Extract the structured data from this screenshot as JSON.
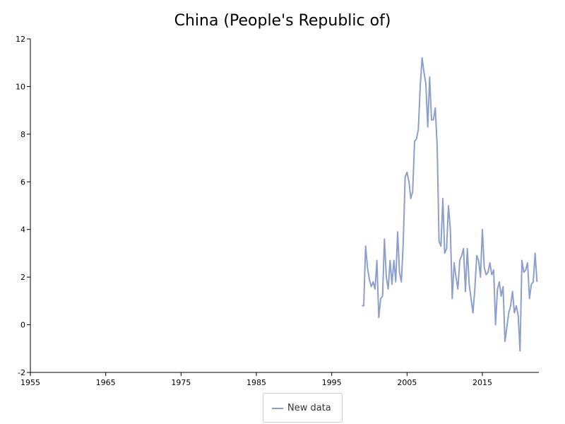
{
  "chart_data": {
    "type": "line",
    "title": "China (People's Republic of)",
    "xlabel": "",
    "ylabel": "",
    "xlim": [
      1955,
      2022.5
    ],
    "ylim": [
      -2,
      12
    ],
    "x_ticks": [
      1955,
      1965,
      1975,
      1985,
      1995,
      2005,
      2015
    ],
    "y_ticks": [
      -2,
      0,
      2,
      4,
      6,
      8,
      10,
      12
    ],
    "grid": false,
    "legend_position": "bottom-center",
    "series": [
      {
        "name": "New data",
        "color": "#8da0cb",
        "x": [
          1999.0,
          1999.25,
          1999.5,
          1999.75,
          2000.0,
          2000.25,
          2000.5,
          2000.75,
          2001.0,
          2001.25,
          2001.5,
          2001.75,
          2002.0,
          2002.25,
          2002.5,
          2002.75,
          2003.0,
          2003.25,
          2003.5,
          2003.75,
          2004.0,
          2004.25,
          2004.5,
          2004.75,
          2005.0,
          2005.25,
          2005.5,
          2005.75,
          2006.0,
          2006.25,
          2006.5,
          2006.75,
          2007.0,
          2007.25,
          2007.5,
          2007.75,
          2008.0,
          2008.25,
          2008.5,
          2008.75,
          2009.0,
          2009.25,
          2009.5,
          2009.75,
          2010.0,
          2010.25,
          2010.5,
          2010.75,
          2011.0,
          2011.25,
          2011.5,
          2011.75,
          2012.0,
          2012.25,
          2012.5,
          2012.75,
          2013.0,
          2013.25,
          2013.5,
          2013.75,
          2014.0,
          2014.25,
          2014.5,
          2014.75,
          2015.0,
          2015.25,
          2015.5,
          2015.75,
          2016.0,
          2016.25,
          2016.5,
          2016.75,
          2017.0,
          2017.25,
          2017.5,
          2017.75,
          2018.0,
          2018.25,
          2018.5,
          2018.75,
          2019.0,
          2019.25,
          2019.5,
          2019.75,
          2020.0,
          2020.25,
          2020.5,
          2020.75,
          2021.0,
          2021.25,
          2021.5,
          2021.75,
          2022.0,
          2022.25
        ],
        "values": [
          0.8,
          0.8,
          3.3,
          2.4,
          1.9,
          1.6,
          1.8,
          1.5,
          2.7,
          0.3,
          1.1,
          1.2,
          3.6,
          2.0,
          1.5,
          2.7,
          1.7,
          2.7,
          1.8,
          3.9,
          2.2,
          1.8,
          3.5,
          6.2,
          6.4,
          6.0,
          5.3,
          5.6,
          7.7,
          7.8,
          8.2,
          10.0,
          11.2,
          10.6,
          10.1,
          8.3,
          10.4,
          8.6,
          8.6,
          9.1,
          7.5,
          3.5,
          3.3,
          5.3,
          3.0,
          3.2,
          5.0,
          4.0,
          1.1,
          2.6,
          2.0,
          1.5,
          2.7,
          2.9,
          3.2,
          1.4,
          3.2,
          1.7,
          1.1,
          0.5,
          1.5,
          2.9,
          2.7,
          2.0,
          4.0,
          2.4,
          2.1,
          2.2,
          2.6,
          2.1,
          2.3,
          0.0,
          1.5,
          1.8,
          1.2,
          1.6,
          -0.7,
          -0.1,
          0.5,
          0.8,
          1.4,
          0.5,
          0.8,
          0.4,
          -1.1,
          2.7,
          2.2,
          2.3,
          2.6,
          1.1,
          1.7,
          1.8,
          3.0,
          1.8
        ]
      }
    ]
  }
}
